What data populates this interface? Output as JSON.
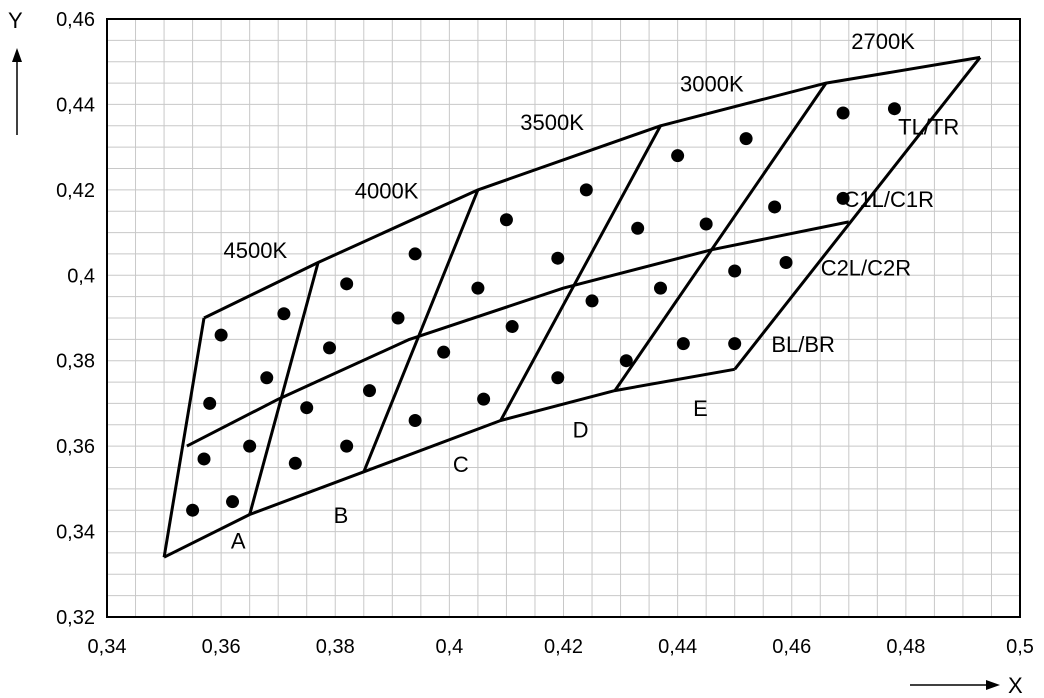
{
  "chart_data": {
    "type": "scatter",
    "title": "",
    "xlabel": "X",
    "ylabel": "Y",
    "xlim": [
      0.34,
      0.5
    ],
    "ylim": [
      0.32,
      0.46
    ],
    "grid": true,
    "x_ticks": [
      {
        "value": 0.34,
        "label": "0,34"
      },
      {
        "value": 0.36,
        "label": "0,36"
      },
      {
        "value": 0.38,
        "label": "0,38"
      },
      {
        "value": 0.4,
        "label": "0,4"
      },
      {
        "value": 0.42,
        "label": "0,42"
      },
      {
        "value": 0.44,
        "label": "0,44"
      },
      {
        "value": 0.46,
        "label": "0,46"
      },
      {
        "value": 0.48,
        "label": "0,48"
      },
      {
        "value": 0.5,
        "label": "0,5"
      }
    ],
    "y_ticks": [
      {
        "value": 0.32,
        "label": "0,32"
      },
      {
        "value": 0.34,
        "label": "0,34"
      },
      {
        "value": 0.36,
        "label": "0,36"
      },
      {
        "value": 0.38,
        "label": "0,38"
      },
      {
        "value": 0.4,
        "label": "0,4"
      },
      {
        "value": 0.42,
        "label": "0,42"
      },
      {
        "value": 0.44,
        "label": "0,44"
      },
      {
        "value": 0.46,
        "label": "0,46"
      }
    ],
    "boundary_lines": [
      {
        "name": "top",
        "points": [
          [
            0.357,
            0.39
          ],
          [
            0.377,
            0.403
          ],
          [
            0.405,
            0.42
          ],
          [
            0.437,
            0.435
          ],
          [
            0.466,
            0.445
          ],
          [
            0.493,
            0.451
          ]
        ]
      },
      {
        "name": "middle",
        "points": [
          [
            0.354,
            0.36
          ],
          [
            0.37,
            0.371
          ],
          [
            0.393,
            0.385
          ],
          [
            0.42,
            0.397
          ],
          [
            0.446,
            0.406
          ],
          [
            0.47,
            0.4125
          ]
        ]
      },
      {
        "name": "bottom",
        "points": [
          [
            0.35,
            0.334
          ],
          [
            0.365,
            0.344
          ],
          [
            0.385,
            0.354
          ],
          [
            0.409,
            0.366
          ],
          [
            0.429,
            0.373
          ],
          [
            0.45,
            0.378
          ]
        ]
      },
      {
        "name": "right",
        "points": [
          [
            0.493,
            0.451
          ],
          [
            0.45,
            0.378
          ]
        ]
      },
      {
        "name": "isotherm-4500K",
        "points": [
          [
            0.357,
            0.39
          ],
          [
            0.35,
            0.334
          ]
        ]
      },
      {
        "name": "isotherm-4000K",
        "points": [
          [
            0.377,
            0.403
          ],
          [
            0.365,
            0.344
          ]
        ]
      },
      {
        "name": "isotherm-3500K",
        "points": [
          [
            0.405,
            0.42
          ],
          [
            0.385,
            0.354
          ]
        ]
      },
      {
        "name": "isotherm-3000K",
        "points": [
          [
            0.437,
            0.435
          ],
          [
            0.409,
            0.366
          ]
        ]
      },
      {
        "name": "isotherm-2700K",
        "points": [
          [
            0.466,
            0.445
          ],
          [
            0.429,
            0.373
          ]
        ]
      }
    ],
    "points": [
      {
        "x": 0.36,
        "y": 0.386
      },
      {
        "x": 0.371,
        "y": 0.391
      },
      {
        "x": 0.358,
        "y": 0.37
      },
      {
        "x": 0.368,
        "y": 0.376
      },
      {
        "x": 0.357,
        "y": 0.357
      },
      {
        "x": 0.365,
        "y": 0.36
      },
      {
        "x": 0.355,
        "y": 0.345
      },
      {
        "x": 0.362,
        "y": 0.347
      },
      {
        "x": 0.382,
        "y": 0.398
      },
      {
        "x": 0.394,
        "y": 0.405
      },
      {
        "x": 0.379,
        "y": 0.383
      },
      {
        "x": 0.391,
        "y": 0.39
      },
      {
        "x": 0.375,
        "y": 0.369
      },
      {
        "x": 0.386,
        "y": 0.373
      },
      {
        "x": 0.373,
        "y": 0.356
      },
      {
        "x": 0.382,
        "y": 0.36
      },
      {
        "x": 0.41,
        "y": 0.413
      },
      {
        "x": 0.424,
        "y": 0.42
      },
      {
        "x": 0.405,
        "y": 0.397
      },
      {
        "x": 0.419,
        "y": 0.404
      },
      {
        "x": 0.399,
        "y": 0.382
      },
      {
        "x": 0.411,
        "y": 0.388
      },
      {
        "x": 0.394,
        "y": 0.366
      },
      {
        "x": 0.406,
        "y": 0.371
      },
      {
        "x": 0.44,
        "y": 0.428
      },
      {
        "x": 0.452,
        "y": 0.432
      },
      {
        "x": 0.433,
        "y": 0.411
      },
      {
        "x": 0.445,
        "y": 0.412
      },
      {
        "x": 0.425,
        "y": 0.394
      },
      {
        "x": 0.437,
        "y": 0.397
      },
      {
        "x": 0.419,
        "y": 0.376
      },
      {
        "x": 0.431,
        "y": 0.38
      },
      {
        "x": 0.469,
        "y": 0.438
      },
      {
        "x": 0.478,
        "y": 0.439
      },
      {
        "x": 0.457,
        "y": 0.416
      },
      {
        "x": 0.469,
        "y": 0.418
      },
      {
        "x": 0.45,
        "y": 0.401
      },
      {
        "x": 0.459,
        "y": 0.403
      },
      {
        "x": 0.441,
        "y": 0.384
      },
      {
        "x": 0.45,
        "y": 0.384
      }
    ],
    "annotations": [
      {
        "text": "2700K",
        "x": 0.476,
        "y": 0.453
      },
      {
        "text": "3000K",
        "x": 0.446,
        "y": 0.443
      },
      {
        "text": "3500K",
        "x": 0.418,
        "y": 0.434
      },
      {
        "text": "4000K",
        "x": 0.389,
        "y": 0.418
      },
      {
        "text": "4500K",
        "x": 0.366,
        "y": 0.404
      },
      {
        "text": "TL/TR",
        "x": 0.484,
        "y": 0.433
      },
      {
        "text": "C1L/C1R",
        "x": 0.477,
        "y": 0.416
      },
      {
        "text": "C2L/C2R",
        "x": 0.473,
        "y": 0.4
      },
      {
        "text": "BL/BR",
        "x": 0.462,
        "y": 0.382
      },
      {
        "text": "A",
        "x": 0.363,
        "y": 0.336
      },
      {
        "text": "B",
        "x": 0.381,
        "y": 0.342
      },
      {
        "text": "C",
        "x": 0.402,
        "y": 0.354
      },
      {
        "text": "D",
        "x": 0.423,
        "y": 0.362
      },
      {
        "text": "E",
        "x": 0.444,
        "y": 0.367
      }
    ]
  }
}
